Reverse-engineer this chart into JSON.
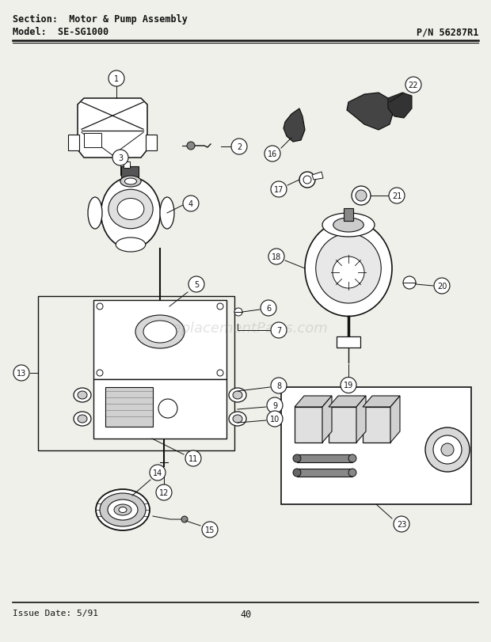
{
  "title_line1": "Section:  Motor & Pump Assembly",
  "title_line2": "Model:  SE-SG1000",
  "title_pn": "P/N 56287R1",
  "footer_issue": "Issue Date: 5/91",
  "footer_page": "40",
  "bg_color": "#f0f0ea",
  "line_color": "#111111",
  "watermark": "ReplacementParts.com",
  "fig_w": 6.2,
  "fig_h": 8.12,
  "dpi": 100
}
